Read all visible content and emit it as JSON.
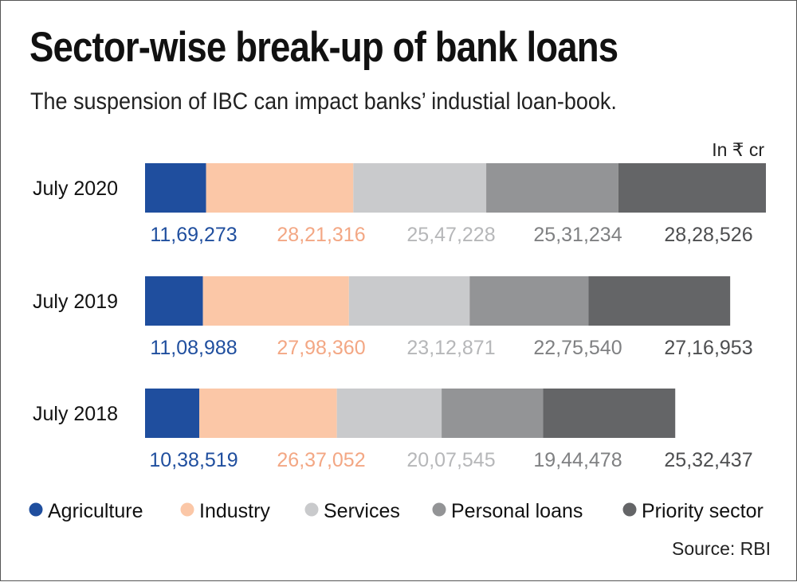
{
  "header": {
    "title": "Sector-wise break-up of bank loans",
    "subtitle": "The suspension of IBC can impact banks’ industial loan-book.",
    "unit": "In ₹ cr"
  },
  "footer": {
    "source": "Source: RBI"
  },
  "chart_data": {
    "type": "bar",
    "orientation": "horizontal",
    "stacked": true,
    "title": "Sector-wise break-up of bank loans",
    "subtitle": "The suspension of IBC can impact banks’ industial loan-book.",
    "unit_label": "In ₹ cr",
    "grid": false,
    "legend_position": "bottom",
    "categories": [
      "July 2020",
      "July 2019",
      "July 2018"
    ],
    "series": [
      {
        "name": "Agriculture",
        "color": "#1f4e9e",
        "label_color": "#1f4e9e",
        "values": [
          1169273,
          1108988,
          1038519
        ],
        "labels": [
          "11,69,273",
          "11,08,988",
          "10,38,519"
        ]
      },
      {
        "name": "Industry",
        "color": "#fbc7a7",
        "label_color": "#f3a784",
        "values": [
          2821316,
          2798360,
          2637052
        ],
        "labels": [
          "28,21,316",
          "27,98,360",
          "26,37,052"
        ]
      },
      {
        "name": "Services",
        "color": "#c9cacc",
        "label_color": "#b6b7b9",
        "values": [
          2547228,
          2312871,
          2007545
        ],
        "labels": [
          "25,47,228",
          "23,12,871",
          "20,07,545"
        ]
      },
      {
        "name": "Personal loans",
        "color": "#939496",
        "label_color": "#7f8082",
        "values": [
          2531234,
          2275540,
          1944478
        ],
        "labels": [
          "25,31,234",
          "22,75,540",
          "19,44,478"
        ]
      },
      {
        "name": "Priority sector",
        "color": "#646567",
        "label_color": "#4d4e50",
        "values": [
          2828526,
          2716953,
          2532437
        ],
        "labels": [
          "28,28,526",
          "27,16,953",
          "25,32,437"
        ]
      }
    ],
    "source": "Source: RBI"
  }
}
